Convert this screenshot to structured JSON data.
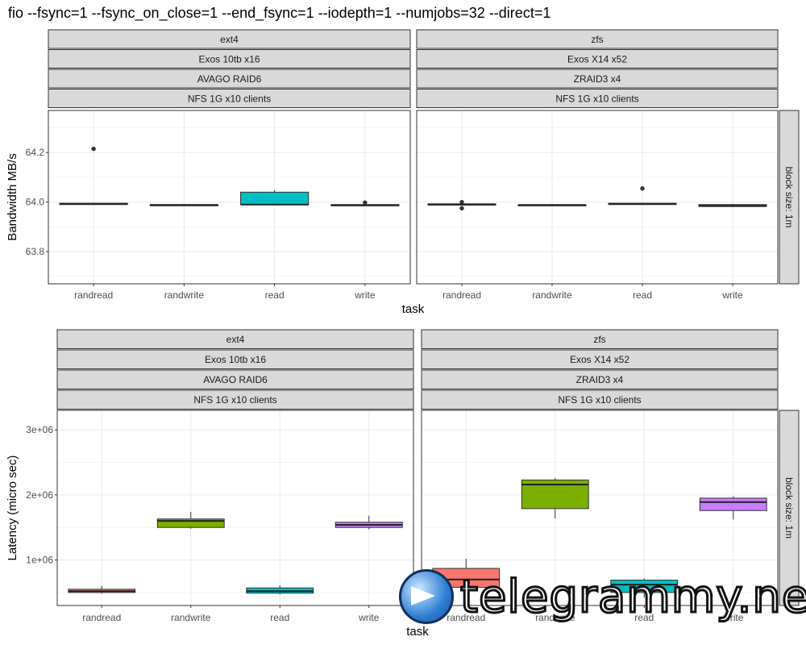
{
  "title": "fio --fsync=1 --fsync_on_close=1 --end_fsync=1 --iodepth=1 --numjobs=32 --direct=1",
  "watermark": "telegrammy.net",
  "chart_data": [
    {
      "type": "box",
      "name": "bandwidth",
      "ylabel": "Bandwidth MB/s",
      "xlabel": "task",
      "ylim": [
        63.67,
        64.37
      ],
      "yticks": [
        63.8,
        64.0,
        64.2
      ],
      "ytick_labels": [
        "63.8",
        "64.0",
        "64.2"
      ],
      "categories": [
        "randread",
        "randwrite",
        "read",
        "write"
      ],
      "colors": [
        "#F8766D",
        "#7CAE00",
        "#00BFC4",
        "#C77CFF"
      ],
      "row_strip": "block size: 1m",
      "facets": [
        {
          "strips": [
            "ext4",
            "Exos 10tb x16",
            "AVAGO RAID6",
            "NFS 1G x10 clients"
          ],
          "boxes": [
            {
              "min": 63.99,
              "q1": 63.99,
              "med": 63.993,
              "q3": 63.995,
              "max": 63.995,
              "outliers": [
                64.215
              ]
            },
            {
              "min": 63.985,
              "q1": 63.985,
              "med": 63.988,
              "q3": 63.99,
              "max": 63.992,
              "outliers": []
            },
            {
              "min": 63.99,
              "q1": 63.99,
              "med": 63.99,
              "q3": 64.04,
              "max": 64.048,
              "outliers": []
            },
            {
              "min": 63.985,
              "q1": 63.985,
              "med": 63.987,
              "q3": 63.99,
              "max": 63.99,
              "outliers": [
                63.998
              ]
            }
          ]
        },
        {
          "strips": [
            "zfs",
            "Exos X14 x52",
            "ZRAID3 x4",
            "NFS 1G x10 clients"
          ],
          "boxes": [
            {
              "min": 63.985,
              "q1": 63.988,
              "med": 63.99,
              "q3": 63.993,
              "max": 63.996,
              "outliers": [
                64.0,
                63.975
              ]
            },
            {
              "min": 63.983,
              "q1": 63.985,
              "med": 63.987,
              "q3": 63.99,
              "max": 63.99,
              "outliers": []
            },
            {
              "min": 63.99,
              "q1": 63.99,
              "med": 63.993,
              "q3": 63.995,
              "max": 63.995,
              "outliers": [
                64.055
              ]
            },
            {
              "min": 63.98,
              "q1": 63.982,
              "med": 63.985,
              "q3": 63.99,
              "max": 63.993,
              "outliers": []
            }
          ]
        }
      ]
    },
    {
      "type": "box",
      "name": "latency",
      "ylabel": "Latency (micro sec)",
      "xlabel": "task",
      "ylim": [
        300000,
        3300000
      ],
      "yticks": [
        1000000,
        2000000,
        3000000
      ],
      "ytick_labels": [
        "1e+06",
        "2e+06",
        "3e+06"
      ],
      "categories": [
        "randread",
        "randwrite",
        "read",
        "write"
      ],
      "colors": [
        "#F8766D",
        "#7CAE00",
        "#00BFC4",
        "#C77CFF"
      ],
      "row_strip": "block size: 1m",
      "facets": [
        {
          "strips": [
            "ext4",
            "Exos 10tb x16",
            "AVAGO RAID6",
            "NFS 1G x10 clients"
          ],
          "boxes": [
            {
              "min": 480000,
              "q1": 500000,
              "med": 520000,
              "q3": 550000,
              "max": 600000,
              "outliers": []
            },
            {
              "min": 1480000,
              "q1": 1500000,
              "med": 1600000,
              "q3": 1630000,
              "max": 1740000,
              "outliers": []
            },
            {
              "min": 470000,
              "q1": 490000,
              "med": 520000,
              "q3": 570000,
              "max": 610000,
              "outliers": []
            },
            {
              "min": 1470000,
              "q1": 1500000,
              "med": 1540000,
              "q3": 1580000,
              "max": 1680000,
              "outliers": []
            }
          ]
        },
        {
          "strips": [
            "zfs",
            "Exos X14 x52",
            "ZRAID3 x4",
            "NFS 1G x10 clients"
          ],
          "boxes": [
            {
              "min": 450000,
              "q1": 580000,
              "med": 700000,
              "q3": 870000,
              "max": 1020000,
              "outliers": []
            },
            {
              "min": 1640000,
              "q1": 1790000,
              "med": 2160000,
              "q3": 2230000,
              "max": 2260000,
              "outliers": []
            },
            {
              "min": 420000,
              "q1": 500000,
              "med": 620000,
              "q3": 690000,
              "max": 720000,
              "outliers": []
            },
            {
              "min": 1620000,
              "q1": 1760000,
              "med": 1890000,
              "q3": 1950000,
              "max": 1980000,
              "outliers": []
            }
          ]
        }
      ]
    }
  ]
}
